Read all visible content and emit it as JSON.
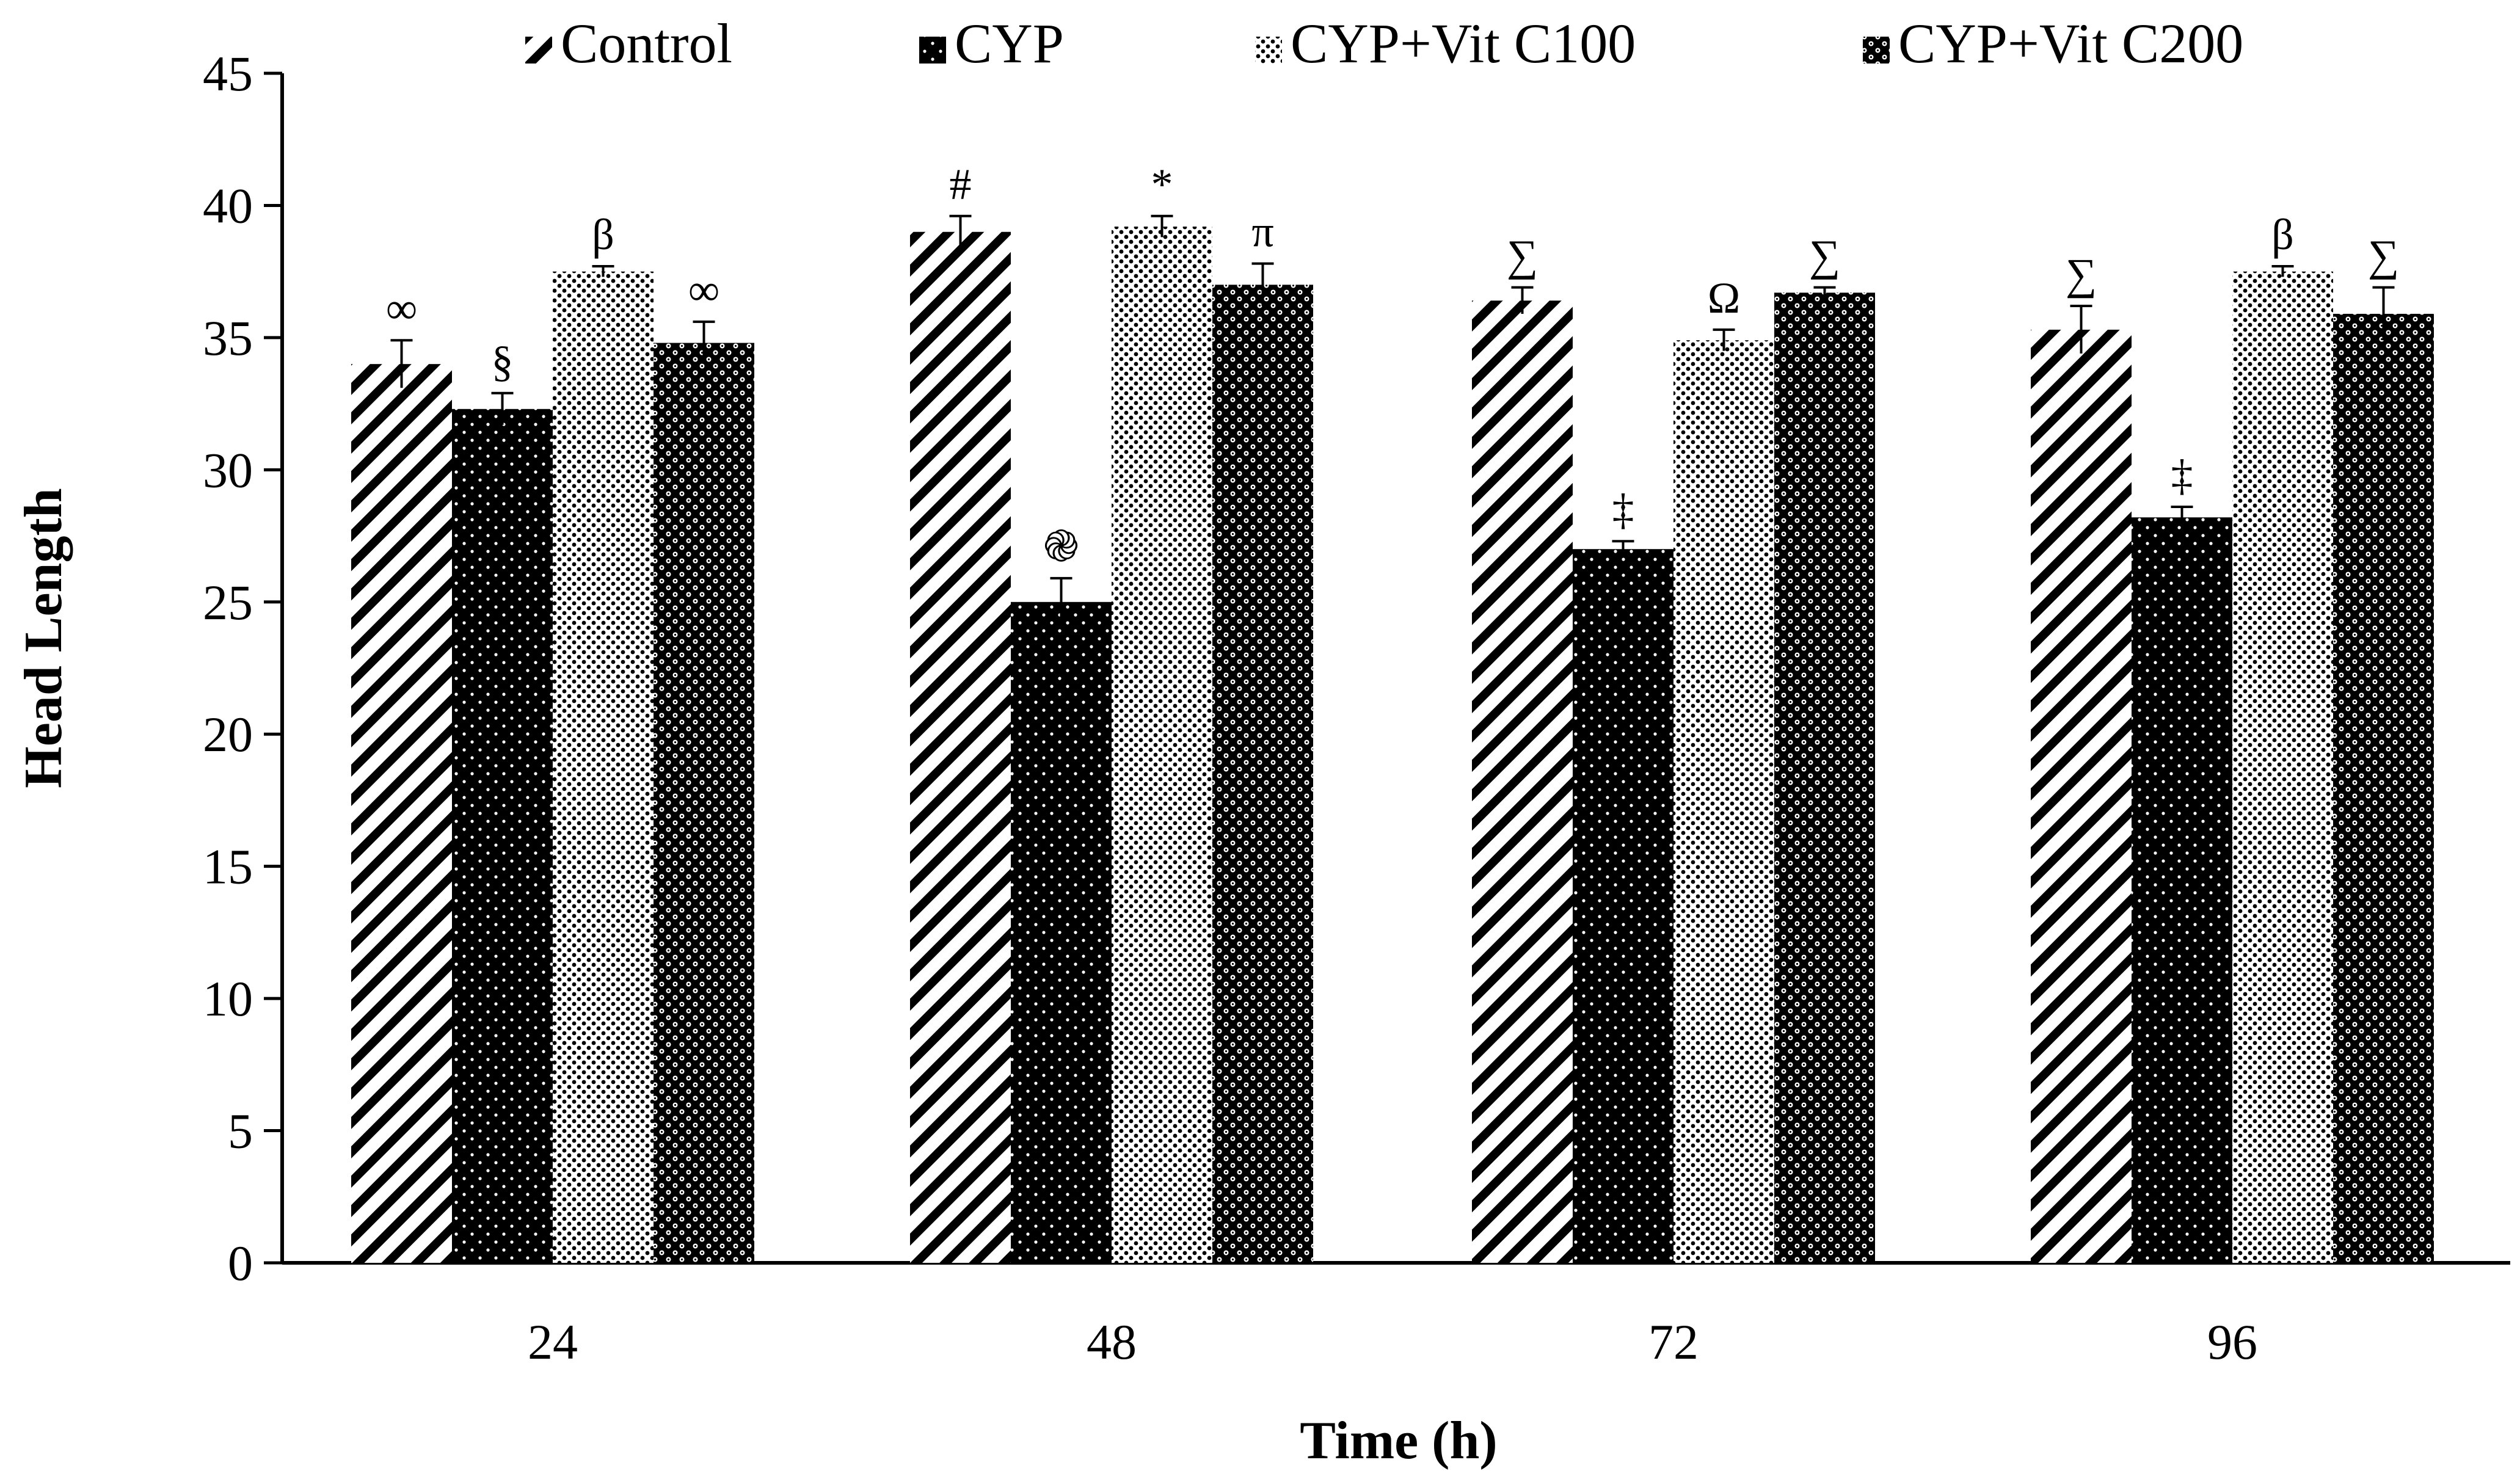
{
  "chart_data": {
    "type": "bar",
    "title": "",
    "xlabel": "Time (h)",
    "ylabel": "Head Length",
    "ylim": [
      0,
      45
    ],
    "yticks": [
      0,
      5,
      10,
      15,
      20,
      25,
      30,
      35,
      40,
      45
    ],
    "grid": false,
    "legend_position": "top",
    "categories": [
      "24",
      "48",
      "72",
      "96"
    ],
    "series": [
      {
        "name": "Control",
        "pattern": "diagonal-stripes",
        "values": [
          34.0,
          39.0,
          36.4,
          35.3
        ],
        "errors": [
          0.9,
          0.6,
          0.5,
          0.9
        ],
        "significance": [
          "∞",
          "#",
          "∑",
          "∑"
        ]
      },
      {
        "name": "CYP",
        "pattern": "black-with-white-dots",
        "values": [
          32.3,
          25.0,
          27.0,
          28.2
        ],
        "errors": [
          0.6,
          0.9,
          0.3,
          0.4
        ],
        "significance": [
          "§",
          "֎",
          "‡",
          "‡"
        ]
      },
      {
        "name": "CYP+Vit C100",
        "pattern": "fine-dots",
        "values": [
          37.5,
          39.2,
          34.9,
          37.5
        ],
        "errors": [
          0.2,
          0.4,
          0.4,
          0.2
        ],
        "significance": [
          "β",
          "*",
          "Ω",
          "β"
        ]
      },
      {
        "name": "CYP+Vit C200",
        "pattern": "dense-checker",
        "values": [
          34.8,
          37.0,
          36.7,
          35.9
        ],
        "errors": [
          0.8,
          0.8,
          0.2,
          1.0
        ],
        "significance": [
          "∞",
          "π",
          "∑",
          "∑"
        ]
      }
    ]
  },
  "colors": {
    "ink": "#000000",
    "paper": "#ffffff"
  }
}
